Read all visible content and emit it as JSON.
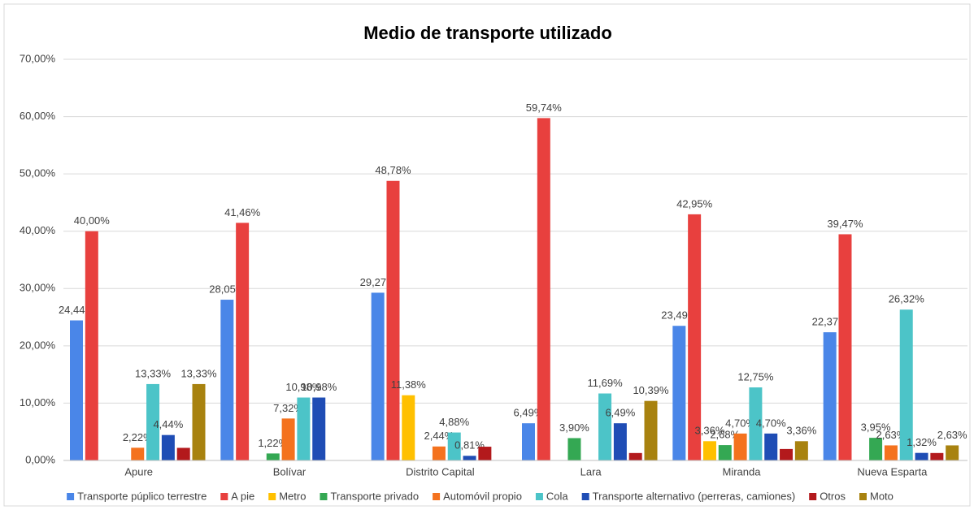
{
  "chart_data": {
    "type": "bar",
    "title": "Medio de transporte utilizado",
    "categories": [
      "Apure",
      "Bolívar",
      "Distrito Capital",
      "Lara",
      "Miranda",
      "Nueva Esparta"
    ],
    "ylim": [
      0,
      70
    ],
    "yticks": [
      {
        "value": 0,
        "label": "0,00%"
      },
      {
        "value": 10,
        "label": "10,00%"
      },
      {
        "value": 20,
        "label": "20,00%"
      },
      {
        "value": 30,
        "label": "30,00%"
      },
      {
        "value": 40,
        "label": "40,00%"
      },
      {
        "value": 50,
        "label": "50,00%"
      },
      {
        "value": 60,
        "label": "60,00%"
      },
      {
        "value": 70,
        "label": "70,00%"
      }
    ],
    "grid": true,
    "legend": "bottom",
    "series": [
      {
        "name": "Transporte púplico terrestre",
        "color": "#4a86e8",
        "values": [
          24.44,
          28.05,
          29.27,
          6.49,
          23.49,
          22.37
        ],
        "value_labels": [
          "24,44%",
          "28,05%",
          "29,27%",
          "6,49%",
          "23,49%",
          "22,37%"
        ]
      },
      {
        "name": "A pie",
        "color": "#e8403e",
        "values": [
          40.0,
          41.46,
          48.78,
          59.74,
          42.95,
          39.47
        ],
        "value_labels": [
          "40,00%",
          "41,46%",
          "48,78%",
          "59,74%",
          "42,95%",
          "39,47%"
        ]
      },
      {
        "name": "Metro",
        "color": "#ffc000",
        "values": [
          0,
          0,
          11.38,
          0,
          3.36,
          0
        ],
        "value_labels": [
          null,
          null,
          "11,38%",
          null,
          "3,36%",
          null
        ]
      },
      {
        "name": "Transporte privado",
        "color": "#34a853",
        "values": [
          0,
          1.22,
          0,
          3.9,
          2.68,
          3.95
        ],
        "value_labels": [
          null,
          "1,22%",
          null,
          "3,90%",
          "2,68%",
          "3,95%"
        ]
      },
      {
        "name": "Automóvil propio",
        "color": "#f4721e",
        "values": [
          2.22,
          7.32,
          2.44,
          0,
          4.7,
          2.63
        ],
        "value_labels": [
          "2,22%",
          "7,32%",
          "2,44%",
          null,
          "4,70%",
          "2,63%"
        ]
      },
      {
        "name": "Cola",
        "color": "#4cc4c8",
        "values": [
          13.33,
          10.98,
          4.88,
          11.69,
          12.75,
          26.32
        ],
        "value_labels": [
          "13,33%",
          "10,98%",
          "4,88%",
          "11,69%",
          "12,75%",
          "26,32%"
        ]
      },
      {
        "name": "Transporte alternativo (perreras, camiones)",
        "color": "#1f4db5",
        "values": [
          4.44,
          10.98,
          0.81,
          6.49,
          4.7,
          1.32
        ],
        "value_labels": [
          "4,44%",
          "10,98%",
          "0,81%",
          "6,49%",
          "4,70%",
          "1,32%"
        ]
      },
      {
        "name": "Otros",
        "color": "#b3191c",
        "values": [
          2.2,
          0,
          2.4,
          1.3,
          2.0,
          1.3
        ],
        "value_labels": [
          null,
          null,
          null,
          null,
          null,
          null
        ]
      },
      {
        "name": "Moto",
        "color": "#a8820f",
        "values": [
          13.33,
          0,
          0,
          10.39,
          3.36,
          2.63
        ],
        "value_labels": [
          "13,33%",
          null,
          null,
          "10,39%",
          "3,36%",
          "2,63%"
        ]
      }
    ]
  }
}
